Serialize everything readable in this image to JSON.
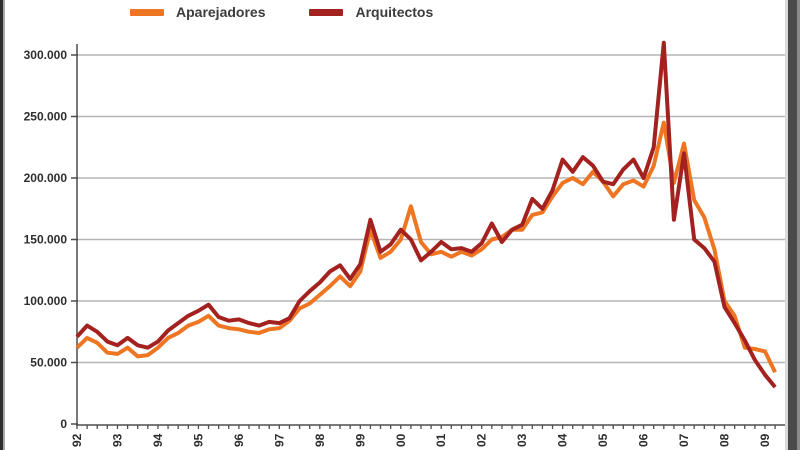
{
  "legend": {
    "items": [
      {
        "label": "Aparejadores",
        "color": "#EE7623"
      },
      {
        "label": "Arquitectos",
        "color": "#A3221F"
      }
    ]
  },
  "chart_data": {
    "type": "line",
    "title": "",
    "x_unit": "quarters",
    "x_years": [
      "92",
      "93",
      "94",
      "95",
      "96",
      "97",
      "98",
      "99",
      "00",
      "01",
      "02",
      "03",
      "04",
      "05",
      "06",
      "07",
      "08",
      "09"
    ],
    "y_axis": {
      "ticks": [
        {
          "label": "300.000",
          "value": 300000
        },
        {
          "label": "250.000",
          "value": 250000
        },
        {
          "label": "200.000",
          "value": 200000
        },
        {
          "label": "150.000",
          "value": 150000
        },
        {
          "label": "100.000",
          "value": 100000
        },
        {
          "label": "50.000",
          "value": 50000
        },
        {
          "label": "0",
          "value": 0
        }
      ],
      "ylim": [
        0,
        300000
      ]
    },
    "grid": "horizontal",
    "legend_position": "top",
    "series": [
      {
        "name": "Aparejadores",
        "color": "#EE7623",
        "values": [
          62000,
          70000,
          66000,
          58000,
          57000,
          62000,
          55000,
          56000,
          62000,
          70000,
          74000,
          80000,
          83000,
          88000,
          80000,
          78000,
          77000,
          75000,
          74000,
          77000,
          78000,
          84000,
          94000,
          98000,
          105000,
          112000,
          120000,
          112000,
          124000,
          158000,
          135000,
          140000,
          150000,
          177000,
          148000,
          138000,
          140000,
          136000,
          140000,
          137000,
          142000,
          150000,
          152000,
          158000,
          158000,
          170000,
          172000,
          185000,
          196000,
          200000,
          195000,
          205000,
          197000,
          185000,
          195000,
          198000,
          193000,
          210000,
          245000,
          196000,
          228000,
          182000,
          168000,
          142000,
          100000,
          88000,
          62000,
          61000,
          59000,
          42000
        ]
      },
      {
        "name": "Arquitectos",
        "color": "#A3221F",
        "values": [
          71000,
          80000,
          75000,
          67000,
          64000,
          70000,
          64000,
          62000,
          67000,
          76000,
          82000,
          88000,
          92000,
          97000,
          87000,
          84000,
          85000,
          82000,
          80000,
          83000,
          82000,
          86000,
          100000,
          108000,
          115000,
          124000,
          129000,
          118000,
          130000,
          166000,
          140000,
          146000,
          158000,
          150000,
          133000,
          140000,
          148000,
          142000,
          143000,
          140000,
          147000,
          163000,
          148000,
          158000,
          162000,
          183000,
          175000,
          190000,
          215000,
          205000,
          217000,
          210000,
          197000,
          195000,
          207000,
          215000,
          200000,
          225000,
          310000,
          166000,
          220000,
          150000,
          143000,
          132000,
          95000,
          82000,
          68000,
          52000,
          40000,
          30000
        ]
      }
    ]
  }
}
